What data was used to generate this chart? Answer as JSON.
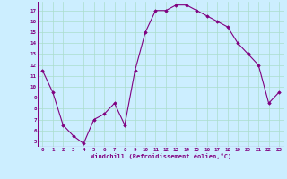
{
  "x": [
    0,
    1,
    2,
    3,
    4,
    5,
    6,
    7,
    8,
    9,
    10,
    11,
    12,
    13,
    14,
    15,
    16,
    17,
    18,
    19,
    20,
    21,
    22,
    23
  ],
  "y": [
    11.5,
    9.5,
    6.5,
    5.5,
    4.8,
    7.0,
    7.5,
    8.5,
    6.5,
    11.5,
    15.0,
    17.0,
    17.0,
    17.5,
    17.5,
    17.0,
    16.5,
    16.0,
    15.5,
    14.0,
    13.0,
    12.0,
    8.5,
    9.5
  ],
  "line_color": "#800080",
  "marker": "D",
  "marker_size": 1.8,
  "bg_color": "#cceeff",
  "grid_color": "#aaddcc",
  "xlabel": "Windchill (Refroidissement éolien,°C)",
  "xlabel_color": "#800080",
  "tick_color": "#800080",
  "ylabel_ticks": [
    5,
    6,
    7,
    8,
    9,
    10,
    11,
    12,
    13,
    14,
    15,
    16,
    17
  ],
  "xlim": [
    -0.5,
    23.5
  ],
  "ylim": [
    4.5,
    17.8
  ]
}
